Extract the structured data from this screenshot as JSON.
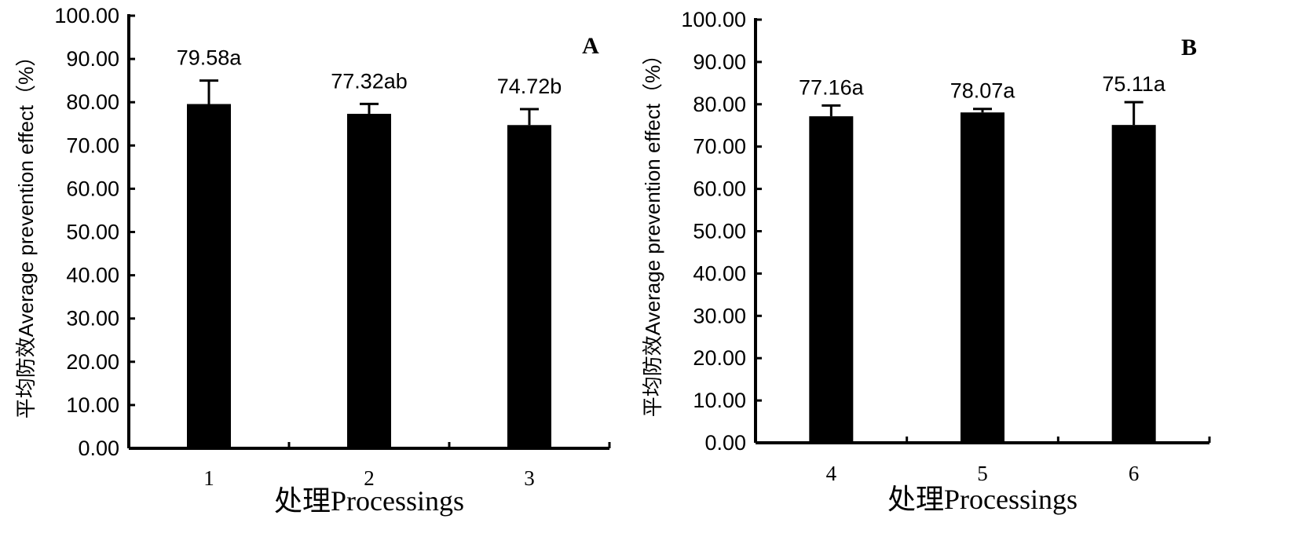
{
  "chart_data": [
    {
      "type": "bar",
      "panel_label": "A",
      "categories": [
        "1",
        "2",
        "3"
      ],
      "values": [
        79.58,
        77.32,
        74.72
      ],
      "error_upper": [
        85.0,
        79.6,
        78.4
      ],
      "data_labels": [
        "79.58a",
        "77.32ab",
        "74.72b"
      ],
      "yticks": [
        "0.00",
        "10.00",
        "20.00",
        "30.00",
        "40.00",
        "50.00",
        "60.00",
        "70.00",
        "80.00",
        "90.00",
        "100.00"
      ],
      "ylim": [
        0,
        100
      ],
      "xlabel": "处理Processings",
      "ylabel": "平均防效Average prevention effect（%）",
      "bar_color": "#000000"
    },
    {
      "type": "bar",
      "panel_label": "B",
      "categories": [
        "4",
        "5",
        "6"
      ],
      "values": [
        77.16,
        78.07,
        75.11
      ],
      "error_upper": [
        79.7,
        78.9,
        80.5
      ],
      "data_labels": [
        "77.16a",
        "78.07a",
        "75.11a"
      ],
      "yticks": [
        "0.00",
        "10.00",
        "20.00",
        "30.00",
        "40.00",
        "50.00",
        "60.00",
        "70.00",
        "80.00",
        "90.00",
        "100.00"
      ],
      "ylim": [
        0,
        100
      ],
      "xlabel": "处理Processings",
      "ylabel": "平均防效Average prevention effect（%）",
      "bar_color": "#000000"
    }
  ]
}
